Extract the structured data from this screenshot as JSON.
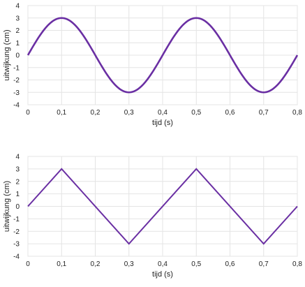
{
  "chart_data": [
    {
      "type": "line",
      "style": "sine",
      "xlabel": "tijd (s)",
      "ylabel": "uitwijkung (cm)",
      "xlim": [
        0,
        0.8
      ],
      "ylim": [
        -4,
        4
      ],
      "grid": true,
      "x_ticks": [
        "0",
        "0,1",
        "0,2",
        "0,3",
        "0,4",
        "0,5",
        "0,6",
        "0,7",
        "0,8"
      ],
      "y_ticks": [
        "4",
        "3",
        "2",
        "1",
        "0",
        "-1",
        "-2",
        "-3",
        "-4"
      ],
      "series": [
        {
          "color": "#6a2fa3",
          "x": [
            0,
            0.1,
            0.2,
            0.3,
            0.4,
            0.5,
            0.6,
            0.7,
            0.8
          ],
          "y": [
            0,
            3,
            0,
            -3,
            0,
            3,
            0,
            -3,
            0
          ]
        }
      ]
    },
    {
      "type": "line",
      "style": "linear",
      "xlabel": "tijd (s)",
      "ylabel": "uitwijkung (cm)",
      "xlim": [
        0,
        0.8
      ],
      "ylim": [
        -4,
        4
      ],
      "grid": true,
      "x_ticks": [
        "0",
        "0,1",
        "0,2",
        "0,3",
        "0,4",
        "0,5",
        "0,6",
        "0,7",
        "0,8"
      ],
      "y_ticks": [
        "4",
        "3",
        "2",
        "1",
        "0",
        "-1",
        "-2",
        "-3",
        "-4"
      ],
      "series": [
        {
          "color": "#6a2fa3",
          "x": [
            0,
            0.1,
            0.3,
            0.5,
            0.7,
            0.8
          ],
          "y": [
            0,
            3,
            -3,
            3,
            -3,
            0
          ]
        }
      ]
    }
  ]
}
